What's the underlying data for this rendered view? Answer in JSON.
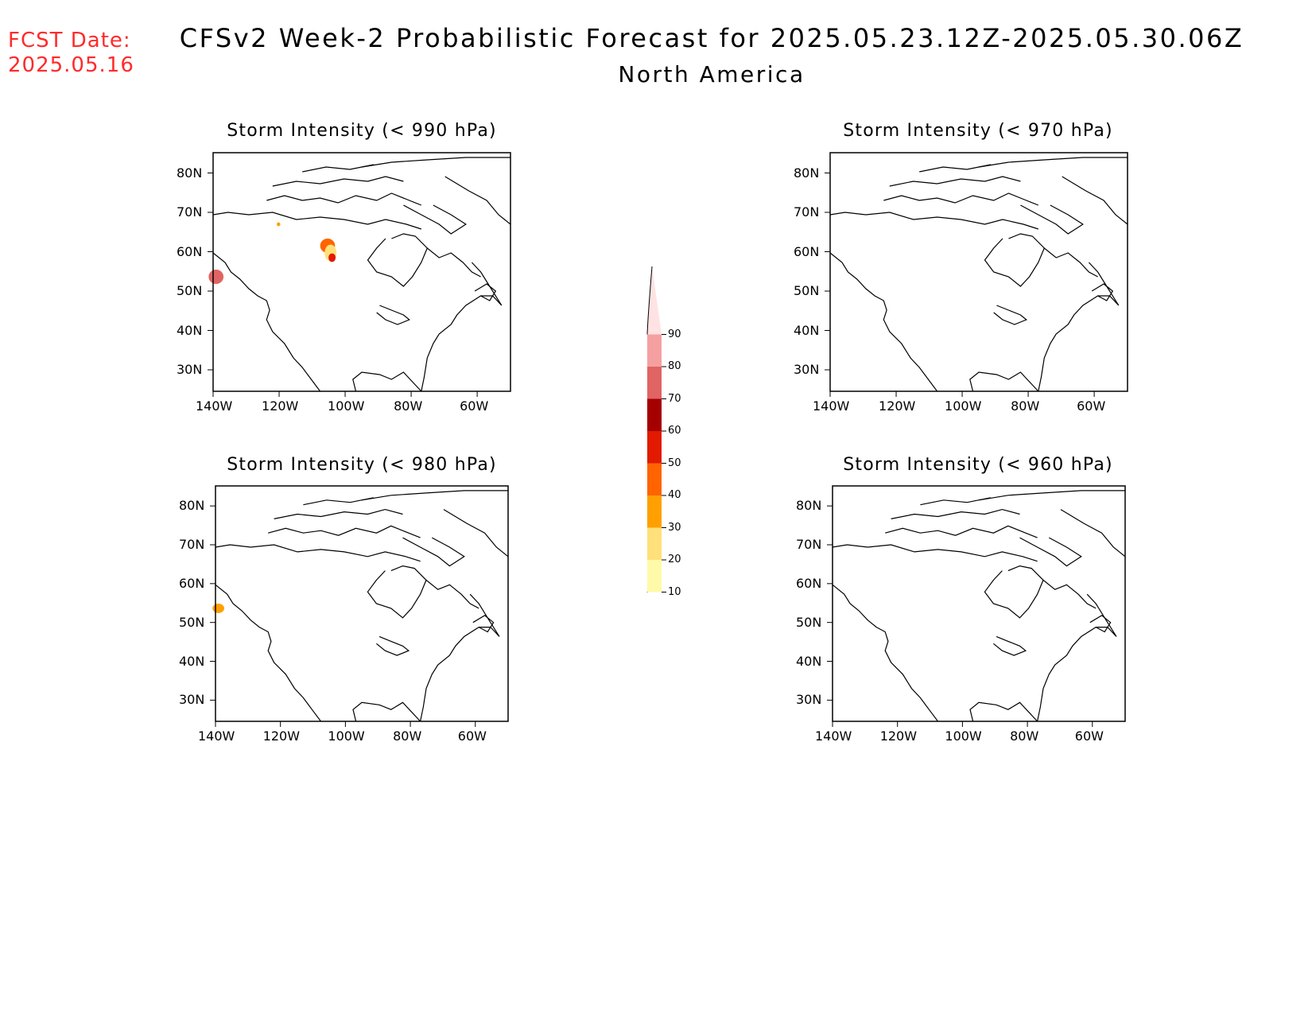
{
  "header": {
    "fcst_line1": "FCST Date:",
    "fcst_line2": "2025.05.16",
    "title": "CFSv2 Week-2 Probabilistic Forecast for 2025.05.23.12Z-2025.05.30.06Z",
    "subtitle": "North America"
  },
  "colors": {
    "fcst_text": "#ff2a2a",
    "coastline": "#000000"
  },
  "axes": {
    "lat_ticks": [
      "80N",
      "70N",
      "60N",
      "50N",
      "40N",
      "30N"
    ],
    "lon_ticks": [
      "140W",
      "120W",
      "100W",
      "80W",
      "60W"
    ]
  },
  "panels": [
    {
      "title": "Storm Intensity (< 990 hPa)",
      "threshold_hPa": 990
    },
    {
      "title": "Storm Intensity (< 970 hPa)",
      "threshold_hPa": 970
    },
    {
      "title": "Storm Intensity (< 980 hPa)",
      "threshold_hPa": 980
    },
    {
      "title": "Storm Intensity (< 960 hPa)",
      "threshold_hPa": 960
    }
  ],
  "colorbar": {
    "levels": [
      "10",
      "20",
      "30",
      "40",
      "50",
      "60",
      "70",
      "80",
      "90"
    ],
    "colors": [
      "#fffaa8",
      "#ffe07a",
      "#ffa000",
      "#ff6400",
      "#e11a00",
      "#a50000",
      "#e06464",
      "#f5a0a0",
      "#ffe2e2"
    ]
  }
}
